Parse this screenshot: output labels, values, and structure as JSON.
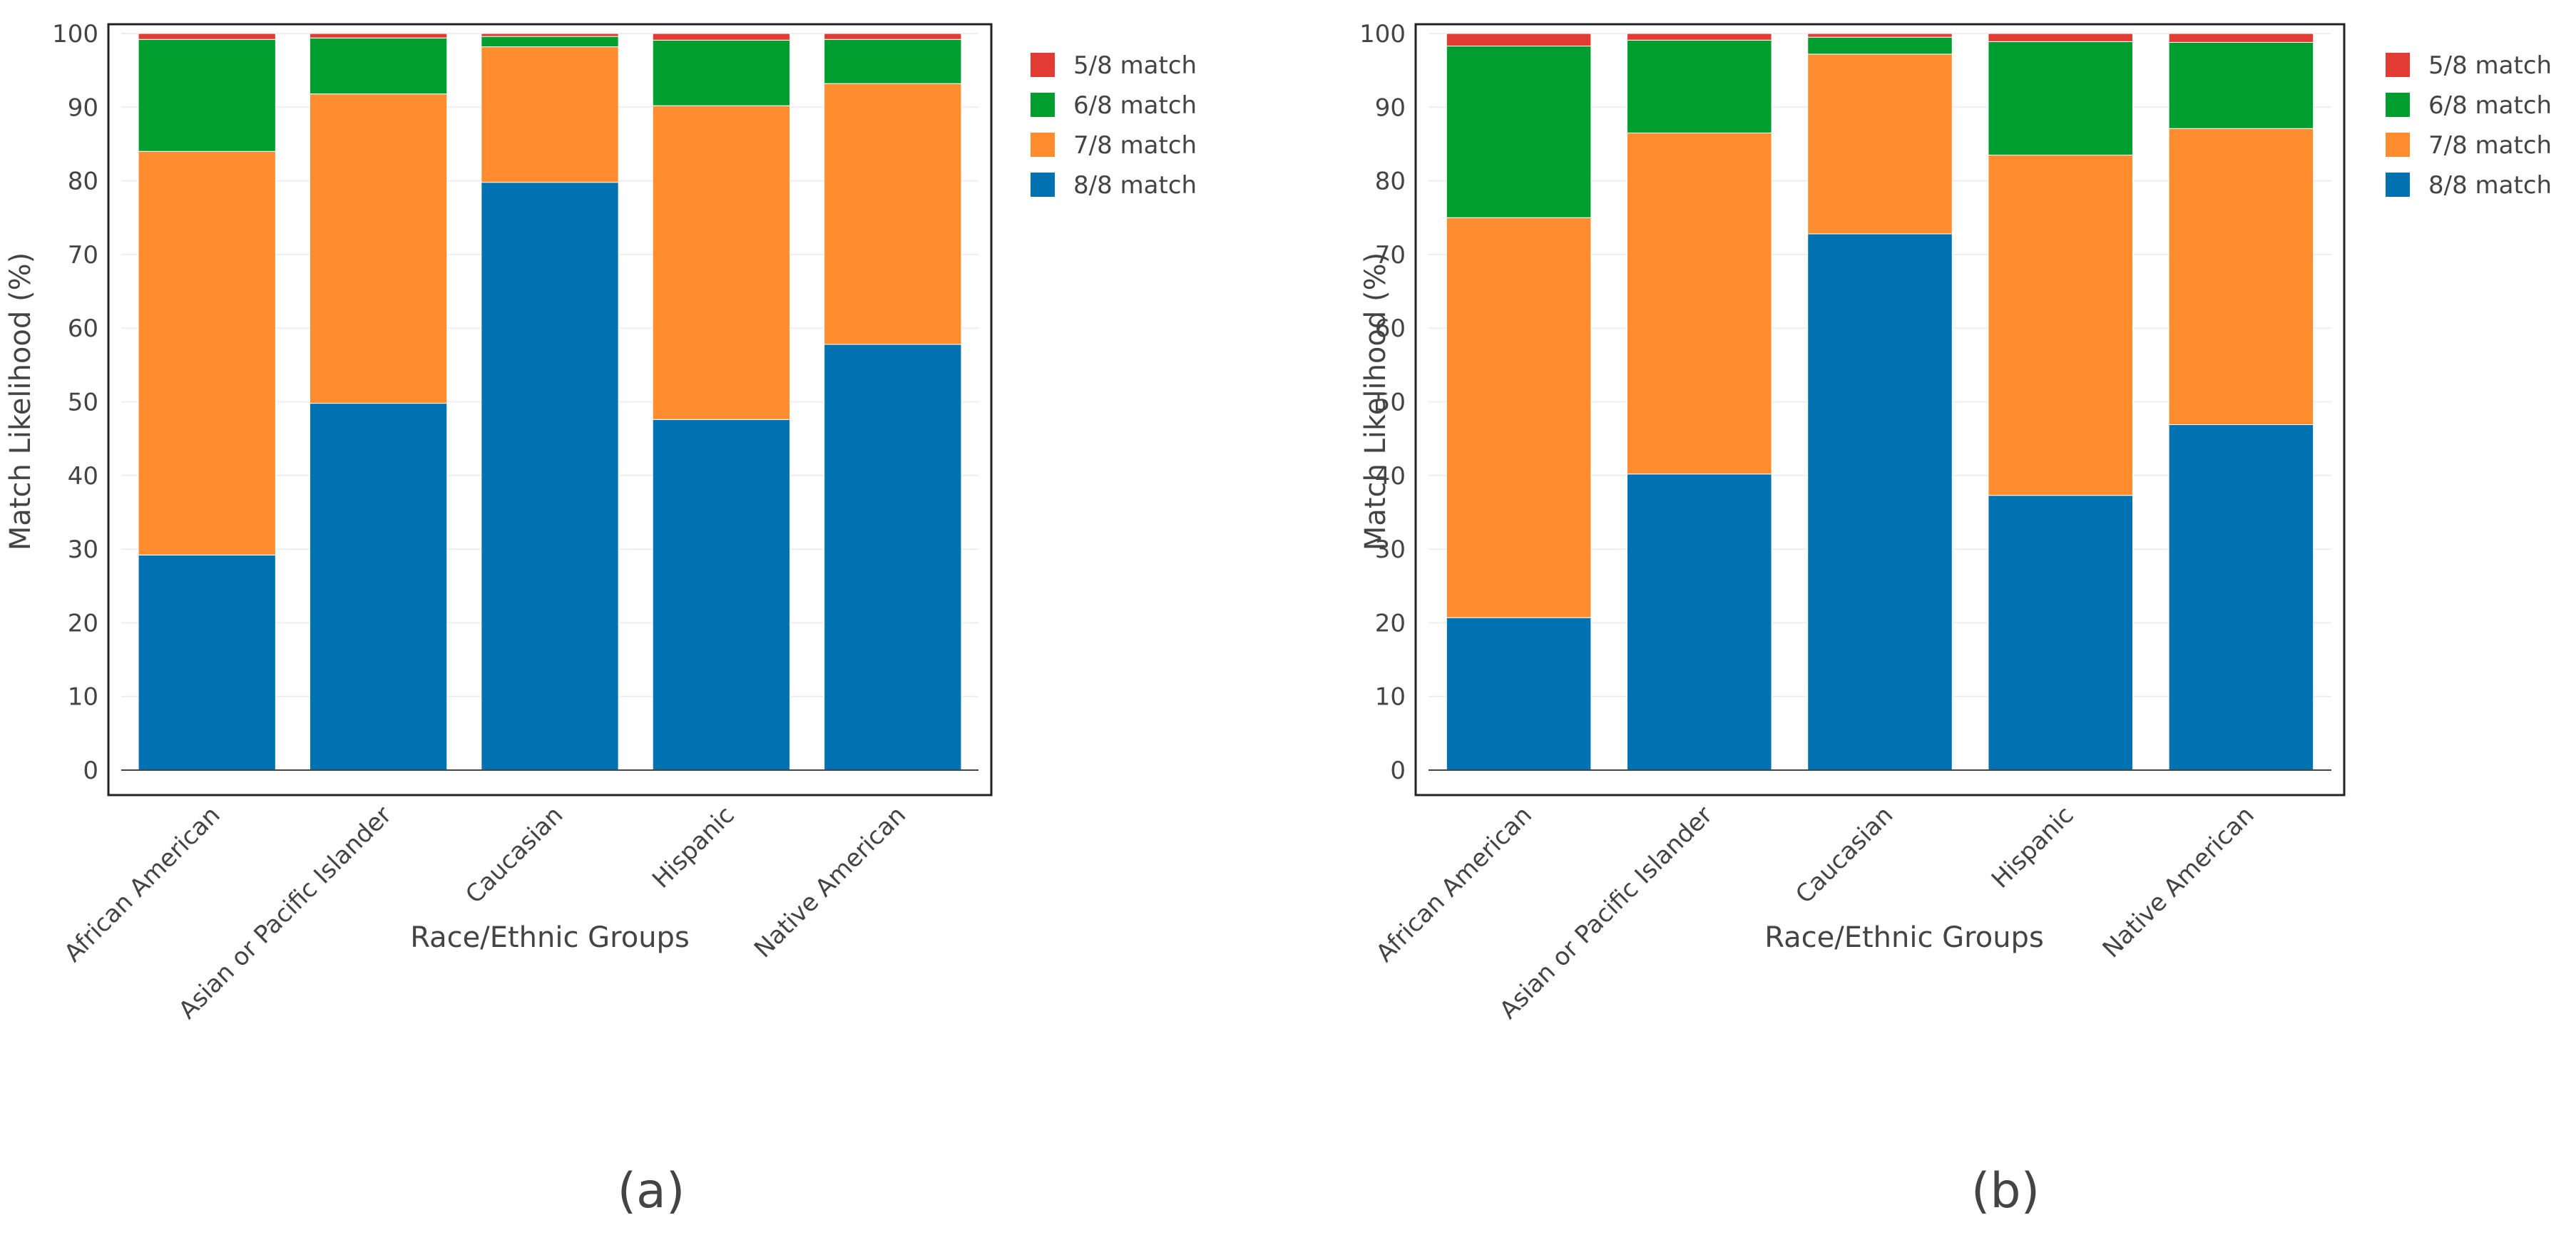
{
  "chart_data": [
    {
      "type": "bar",
      "stacked": true,
      "panel_label": "(a)",
      "xlabel": "Race/Ethnic Groups",
      "ylabel": "Match Likelihood (%)",
      "ylim": [
        0,
        100
      ],
      "yticks": [
        0,
        10,
        20,
        30,
        40,
        50,
        60,
        70,
        80,
        90,
        100
      ],
      "grid": true,
      "legend_position": "top-right",
      "categories": [
        "African American",
        "Asian or Pacific Islander",
        "Caucasian",
        "Hispanic",
        "Native American"
      ],
      "series": [
        {
          "name": "8/8 match",
          "color": "#0072b2",
          "values": [
            29.2,
            49.8,
            79.8,
            47.6,
            57.8
          ]
        },
        {
          "name": "7/8 match",
          "color": "#ff8c2e",
          "values": [
            54.8,
            42.0,
            18.4,
            42.6,
            35.4
          ]
        },
        {
          "name": "6/8 match",
          "color": "#009e2f",
          "values": [
            15.2,
            7.6,
            1.4,
            8.9,
            6.0
          ]
        },
        {
          "name": "5/8 match",
          "color": "#e23b33",
          "values": [
            0.8,
            0.6,
            0.4,
            0.9,
            0.8
          ]
        }
      ]
    },
    {
      "type": "bar",
      "stacked": true,
      "panel_label": "(b)",
      "xlabel": "Race/Ethnic Groups",
      "ylabel": "Match Likelihood (%)",
      "ylim": [
        0,
        100
      ],
      "yticks": [
        0,
        10,
        20,
        30,
        40,
        50,
        60,
        70,
        80,
        90,
        100
      ],
      "grid": true,
      "legend_position": "top-right",
      "categories": [
        "African American",
        "Asian or Pacific Islander",
        "Caucasian",
        "Hispanic",
        "Native American"
      ],
      "series": [
        {
          "name": "8/8 match",
          "color": "#0072b2",
          "values": [
            20.7,
            40.2,
            72.8,
            37.3,
            46.9
          ]
        },
        {
          "name": "7/8 match",
          "color": "#ff8c2e",
          "values": [
            54.3,
            46.3,
            24.4,
            46.2,
            40.2
          ]
        },
        {
          "name": "6/8 match",
          "color": "#009e2f",
          "values": [
            23.3,
            12.6,
            2.3,
            15.4,
            11.7
          ]
        },
        {
          "name": "5/8 match",
          "color": "#e23b33",
          "values": [
            1.7,
            0.9,
            0.5,
            1.1,
            1.2
          ]
        }
      ]
    }
  ]
}
